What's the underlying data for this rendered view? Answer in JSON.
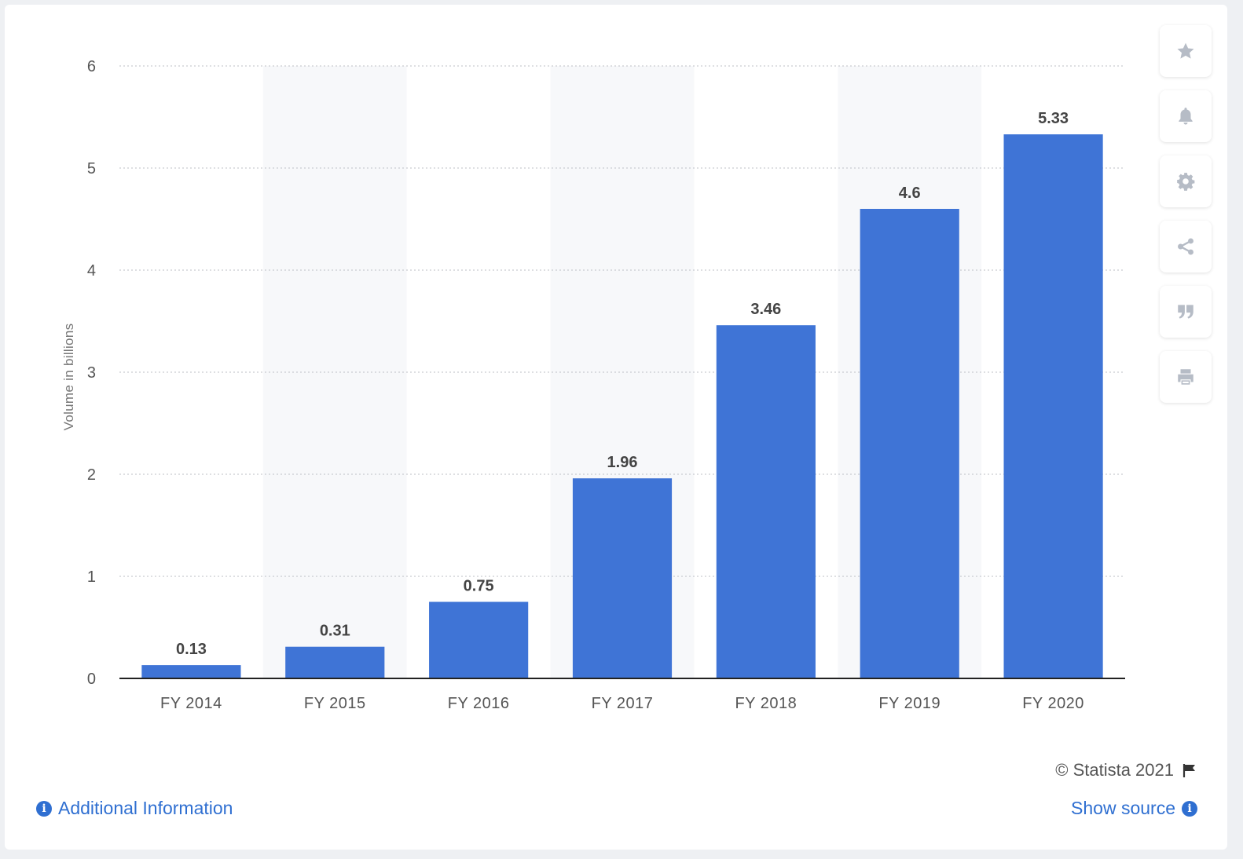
{
  "chart_data": {
    "type": "bar",
    "categories": [
      "FY 2014",
      "FY 2015",
      "FY 2016",
      "FY 2017",
      "FY 2018",
      "FY 2019",
      "FY 2020"
    ],
    "values": [
      0.13,
      0.31,
      0.75,
      1.96,
      3.46,
      4.6,
      5.33
    ],
    "value_labels": [
      "0.13",
      "0.31",
      "0.75",
      "1.96",
      "3.46",
      "4.6",
      "5.33"
    ],
    "ylabel": "Volume in billions",
    "xlabel": "",
    "ylim": [
      0,
      6
    ],
    "yticks": [
      0,
      1,
      2,
      3,
      4,
      5,
      6
    ],
    "grid": true,
    "bar_color": "#3f74d6"
  },
  "toolbar": {
    "icons": [
      "star-icon",
      "bell-icon",
      "gear-icon",
      "share-icon",
      "quote-icon",
      "print-icon"
    ]
  },
  "footer": {
    "credit": "© Statista 2021",
    "additional_info": "Additional Information",
    "show_source": "Show source"
  },
  "colors": {
    "accent": "#2f6fd1",
    "band": "#f7f8fa",
    "icon": "#b6bcc6"
  }
}
